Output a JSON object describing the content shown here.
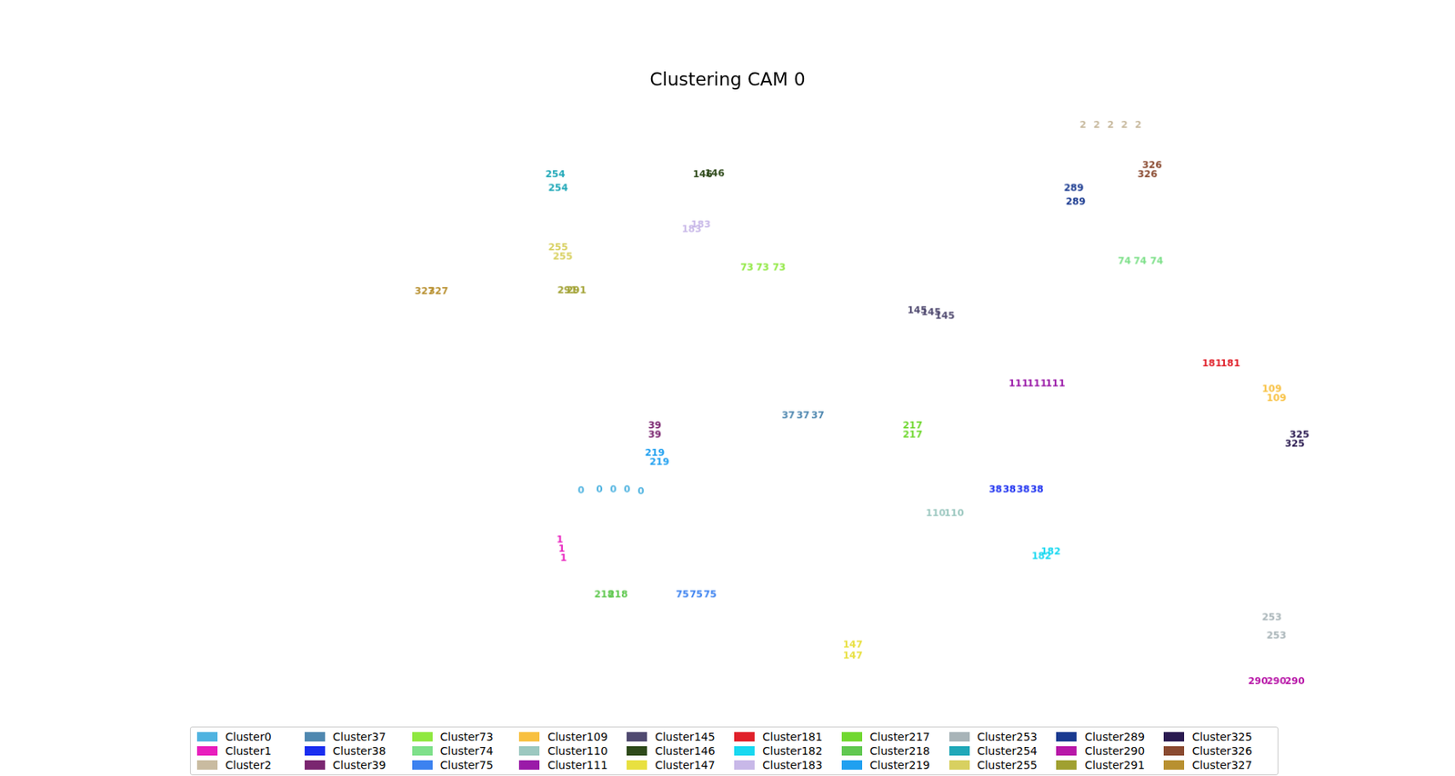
{
  "chart_data": {
    "type": "scatter",
    "title": "Clustering CAM 0",
    "xlim": [
      0,
      1568
    ],
    "ylim": [
      0,
      780
    ],
    "tick_labels": false,
    "grid": false,
    "legend": "bottom",
    "series": [
      {
        "name": "Cluster0",
        "color": "#4fb3e0",
        "marker": "text",
        "x": [
          625,
          645,
          660,
          675,
          690
        ],
        "values": [
          249,
          250,
          250,
          250,
          248
        ]
      },
      {
        "name": "Cluster1",
        "color": "#e81ebd",
        "marker": "text",
        "x": [
          602,
          604,
          606
        ],
        "values": [
          195,
          185,
          175
        ]
      },
      {
        "name": "Cluster2",
        "color": "#c9bba0",
        "marker": "text",
        "x": [
          1170,
          1185,
          1200,
          1215,
          1230
        ],
        "values": [
          649,
          649,
          649,
          649,
          649
        ]
      },
      {
        "name": "Cluster37",
        "color": "#4f88b0",
        "marker": "text",
        "x": [
          850,
          866,
          882
        ],
        "values": [
          331,
          331,
          331
        ]
      },
      {
        "name": "Cluster38",
        "color": "#1a2ef0",
        "marker": "text",
        "x": [
          1075,
          1090,
          1105,
          1120
        ],
        "values": [
          250,
          250,
          250,
          250
        ]
      },
      {
        "name": "Cluster39",
        "color": "#7a2670",
        "marker": "text",
        "x": [
          705,
          705
        ],
        "values": [
          320,
          310
        ]
      },
      {
        "name": "Cluster73",
        "color": "#8fe840",
        "marker": "text",
        "x": [
          805,
          822,
          840
        ],
        "values": [
          493,
          493,
          493
        ]
      },
      {
        "name": "Cluster74",
        "color": "#7ee08a",
        "marker": "text",
        "x": [
          1215,
          1232,
          1250
        ],
        "values": [
          500,
          500,
          500
        ]
      },
      {
        "name": "Cluster75",
        "color": "#3c82f0",
        "marker": "text",
        "x": [
          735,
          750,
          765
        ],
        "values": [
          135,
          135,
          135
        ]
      },
      {
        "name": "Cluster109",
        "color": "#f8c040",
        "marker": "text",
        "x": [
          1375,
          1380
        ],
        "values": [
          360,
          350
        ]
      },
      {
        "name": "Cluster110",
        "color": "#9cc8c0",
        "marker": "text",
        "x": [
          1010,
          1030
        ],
        "values": [
          224,
          224
        ]
      },
      {
        "name": "Cluster111",
        "color": "#9a1aa8",
        "marker": "text",
        "x": [
          1100,
          1120,
          1140
        ],
        "values": [
          366,
          366,
          366
        ]
      },
      {
        "name": "Cluster145",
        "color": "#504a70",
        "marker": "text",
        "x": [
          990,
          1005,
          1020
        ],
        "values": [
          446,
          444,
          440
        ]
      },
      {
        "name": "Cluster146",
        "color": "#2e4a1a",
        "marker": "text",
        "x": [
          757,
          770
        ],
        "values": [
          595,
          596
        ]
      },
      {
        "name": "Cluster147",
        "color": "#e8e040",
        "marker": "text",
        "x": [
          920,
          920
        ],
        "values": [
          80,
          68
        ]
      },
      {
        "name": "Cluster181",
        "color": "#e0202a",
        "marker": "text",
        "x": [
          1310,
          1330
        ],
        "values": [
          388,
          388
        ]
      },
      {
        "name": "Cluster182",
        "color": "#18d8f0",
        "marker": "text",
        "x": [
          1125,
          1135
        ],
        "values": [
          177,
          182
        ]
      },
      {
        "name": "Cluster183",
        "color": "#c8b8e8",
        "marker": "text",
        "x": [
          745,
          755
        ],
        "values": [
          535,
          540
        ]
      },
      {
        "name": "Cluster217",
        "color": "#70d830",
        "marker": "text",
        "x": [
          985,
          985
        ],
        "values": [
          320,
          310
        ]
      },
      {
        "name": "Cluster218",
        "color": "#60c850",
        "marker": "text",
        "x": [
          650,
          665
        ],
        "values": [
          135,
          135
        ]
      },
      {
        "name": "Cluster219",
        "color": "#20a0f0",
        "marker": "text",
        "x": [
          705,
          710
        ],
        "values": [
          290,
          280
        ]
      },
      {
        "name": "Cluster253",
        "color": "#a8b4b8",
        "marker": "text",
        "x": [
          1375,
          1380
        ],
        "values": [
          110,
          90
        ]
      },
      {
        "name": "Cluster254",
        "color": "#20a8b8",
        "marker": "text",
        "x": [
          597,
          600
        ],
        "values": [
          595,
          580
        ]
      },
      {
        "name": "Cluster255",
        "color": "#d8d060",
        "marker": "text",
        "x": [
          600,
          605
        ],
        "values": [
          515,
          505
        ]
      },
      {
        "name": "Cluster289",
        "color": "#1a3a90",
        "marker": "text",
        "x": [
          1160,
          1162
        ],
        "values": [
          580,
          565
        ]
      },
      {
        "name": "Cluster290",
        "color": "#b818a8",
        "marker": "text",
        "x": [
          1360,
          1380,
          1400
        ],
        "values": [
          40,
          40,
          40
        ]
      },
      {
        "name": "Cluster291",
        "color": "#a0a030",
        "marker": "text",
        "x": [
          610,
          620
        ],
        "values": [
          468,
          468
        ]
      },
      {
        "name": "Cluster325",
        "color": "#2a1a50",
        "marker": "text",
        "x": [
          1400,
          1405
        ],
        "values": [
          300,
          310
        ]
      },
      {
        "name": "Cluster326",
        "color": "#8a4a30",
        "marker": "text",
        "x": [
          1240,
          1245
        ],
        "values": [
          595,
          605
        ]
      },
      {
        "name": "Cluster327",
        "color": "#b89030",
        "marker": "text",
        "x": [
          455,
          470
        ],
        "values": [
          467,
          467
        ]
      }
    ]
  }
}
